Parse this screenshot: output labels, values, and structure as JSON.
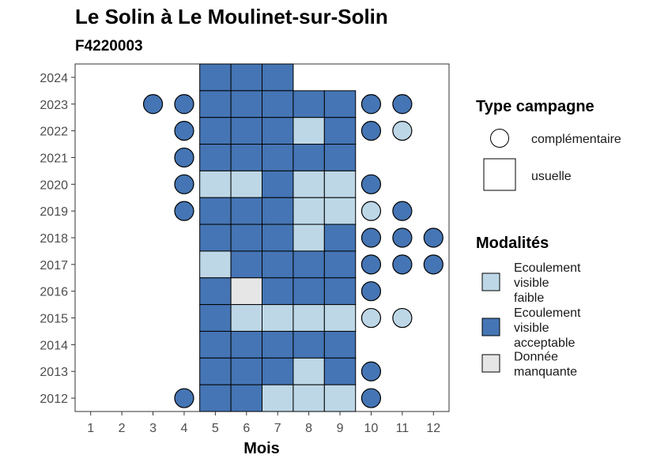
{
  "title": "Le Solin à Le Moulinet-sur-Solin",
  "subtitle": "F4220003",
  "chart_data": {
    "type": "heatmap",
    "xlabel": "Mois",
    "ylabel": "",
    "x_ticks": [
      1,
      2,
      3,
      4,
      5,
      6,
      7,
      8,
      9,
      10,
      11,
      12
    ],
    "y_ticks": [
      2012,
      2013,
      2014,
      2015,
      2016,
      2017,
      2018,
      2019,
      2020,
      2021,
      2022,
      2023,
      2024
    ],
    "xlim": [
      0.5,
      12.5
    ],
    "ylim": [
      2011.5,
      2024.5
    ],
    "colors": {
      "Ecoulement visible faible": "#bdd7e7",
      "Ecoulement visible acceptable": "#4575b4",
      "Donnée manquante": "#e6e6e6"
    },
    "legend_type": {
      "title": "Type campagne",
      "items": [
        "complémentaire",
        "usuelle"
      ]
    },
    "legend_modalites": {
      "title": "Modalités",
      "items": [
        {
          "label": "Ecoulement visible faible",
          "lines": [
            "Ecoulement",
            "visible",
            "faible"
          ]
        },
        {
          "label": "Ecoulement visible acceptable",
          "lines": [
            "Ecoulement",
            "visible",
            "acceptable"
          ]
        },
        {
          "label": "Donnée manquante",
          "lines": [
            "Donnée",
            "manquante"
          ]
        }
      ]
    },
    "points": [
      {
        "year": 2024,
        "month": 5,
        "type": "usuelle",
        "modalite": "Ecoulement visible acceptable"
      },
      {
        "year": 2024,
        "month": 6,
        "type": "usuelle",
        "modalite": "Ecoulement visible acceptable"
      },
      {
        "year": 2024,
        "month": 7,
        "type": "usuelle",
        "modalite": "Ecoulement visible acceptable"
      },
      {
        "year": 2023,
        "month": 3,
        "type": "complémentaire",
        "modalite": "Ecoulement visible acceptable"
      },
      {
        "year": 2023,
        "month": 4,
        "type": "complémentaire",
        "modalite": "Ecoulement visible acceptable"
      },
      {
        "year": 2023,
        "month": 5,
        "type": "usuelle",
        "modalite": "Ecoulement visible acceptable"
      },
      {
        "year": 2023,
        "month": 6,
        "type": "usuelle",
        "modalite": "Ecoulement visible acceptable"
      },
      {
        "year": 2023,
        "month": 7,
        "type": "usuelle",
        "modalite": "Ecoulement visible acceptable"
      },
      {
        "year": 2023,
        "month": 8,
        "type": "usuelle",
        "modalite": "Ecoulement visible acceptable"
      },
      {
        "year": 2023,
        "month": 9,
        "type": "usuelle",
        "modalite": "Ecoulement visible acceptable"
      },
      {
        "year": 2023,
        "month": 10,
        "type": "complémentaire",
        "modalite": "Ecoulement visible acceptable"
      },
      {
        "year": 2023,
        "month": 11,
        "type": "complémentaire",
        "modalite": "Ecoulement visible acceptable"
      },
      {
        "year": 2022,
        "month": 4,
        "type": "complémentaire",
        "modalite": "Ecoulement visible acceptable"
      },
      {
        "year": 2022,
        "month": 5,
        "type": "usuelle",
        "modalite": "Ecoulement visible acceptable"
      },
      {
        "year": 2022,
        "month": 6,
        "type": "usuelle",
        "modalite": "Ecoulement visible acceptable"
      },
      {
        "year": 2022,
        "month": 7,
        "type": "usuelle",
        "modalite": "Ecoulement visible acceptable"
      },
      {
        "year": 2022,
        "month": 8,
        "type": "usuelle",
        "modalite": "Ecoulement visible faible"
      },
      {
        "year": 2022,
        "month": 9,
        "type": "usuelle",
        "modalite": "Ecoulement visible acceptable"
      },
      {
        "year": 2022,
        "month": 10,
        "type": "complémentaire",
        "modalite": "Ecoulement visible acceptable"
      },
      {
        "year": 2022,
        "month": 11,
        "type": "complémentaire",
        "modalite": "Ecoulement visible faible"
      },
      {
        "year": 2021,
        "month": 4,
        "type": "complémentaire",
        "modalite": "Ecoulement visible acceptable"
      },
      {
        "year": 2021,
        "month": 5,
        "type": "usuelle",
        "modalite": "Ecoulement visible acceptable"
      },
      {
        "year": 2021,
        "month": 6,
        "type": "usuelle",
        "modalite": "Ecoulement visible acceptable"
      },
      {
        "year": 2021,
        "month": 7,
        "type": "usuelle",
        "modalite": "Ecoulement visible acceptable"
      },
      {
        "year": 2021,
        "month": 8,
        "type": "usuelle",
        "modalite": "Ecoulement visible acceptable"
      },
      {
        "year": 2021,
        "month": 9,
        "type": "usuelle",
        "modalite": "Ecoulement visible acceptable"
      },
      {
        "year": 2020,
        "month": 4,
        "type": "complémentaire",
        "modalite": "Ecoulement visible acceptable"
      },
      {
        "year": 2020,
        "month": 5,
        "type": "usuelle",
        "modalite": "Ecoulement visible faible"
      },
      {
        "year": 2020,
        "month": 6,
        "type": "usuelle",
        "modalite": "Ecoulement visible faible"
      },
      {
        "year": 2020,
        "month": 7,
        "type": "usuelle",
        "modalite": "Ecoulement visible acceptable"
      },
      {
        "year": 2020,
        "month": 8,
        "type": "usuelle",
        "modalite": "Ecoulement visible faible"
      },
      {
        "year": 2020,
        "month": 9,
        "type": "usuelle",
        "modalite": "Ecoulement visible faible"
      },
      {
        "year": 2020,
        "month": 10,
        "type": "complémentaire",
        "modalite": "Ecoulement visible acceptable"
      },
      {
        "year": 2019,
        "month": 4,
        "type": "complémentaire",
        "modalite": "Ecoulement visible acceptable"
      },
      {
        "year": 2019,
        "month": 5,
        "type": "usuelle",
        "modalite": "Ecoulement visible acceptable"
      },
      {
        "year": 2019,
        "month": 6,
        "type": "usuelle",
        "modalite": "Ecoulement visible acceptable"
      },
      {
        "year": 2019,
        "month": 7,
        "type": "usuelle",
        "modalite": "Ecoulement visible acceptable"
      },
      {
        "year": 2019,
        "month": 8,
        "type": "usuelle",
        "modalite": "Ecoulement visible faible"
      },
      {
        "year": 2019,
        "month": 9,
        "type": "usuelle",
        "modalite": "Ecoulement visible faible"
      },
      {
        "year": 2019,
        "month": 10,
        "type": "complémentaire",
        "modalite": "Ecoulement visible faible"
      },
      {
        "year": 2019,
        "month": 11,
        "type": "complémentaire",
        "modalite": "Ecoulement visible acceptable"
      },
      {
        "year": 2018,
        "month": 5,
        "type": "usuelle",
        "modalite": "Ecoulement visible acceptable"
      },
      {
        "year": 2018,
        "month": 6,
        "type": "usuelle",
        "modalite": "Ecoulement visible acceptable"
      },
      {
        "year": 2018,
        "month": 7,
        "type": "usuelle",
        "modalite": "Ecoulement visible acceptable"
      },
      {
        "year": 2018,
        "month": 8,
        "type": "usuelle",
        "modalite": "Ecoulement visible faible"
      },
      {
        "year": 2018,
        "month": 9,
        "type": "usuelle",
        "modalite": "Ecoulement visible acceptable"
      },
      {
        "year": 2018,
        "month": 10,
        "type": "complémentaire",
        "modalite": "Ecoulement visible acceptable"
      },
      {
        "year": 2018,
        "month": 11,
        "type": "complémentaire",
        "modalite": "Ecoulement visible acceptable"
      },
      {
        "year": 2018,
        "month": 12,
        "type": "complémentaire",
        "modalite": "Ecoulement visible acceptable"
      },
      {
        "year": 2017,
        "month": 5,
        "type": "usuelle",
        "modalite": "Ecoulement visible faible"
      },
      {
        "year": 2017,
        "month": 6,
        "type": "usuelle",
        "modalite": "Ecoulement visible acceptable"
      },
      {
        "year": 2017,
        "month": 7,
        "type": "usuelle",
        "modalite": "Ecoulement visible acceptable"
      },
      {
        "year": 2017,
        "month": 8,
        "type": "usuelle",
        "modalite": "Ecoulement visible acceptable"
      },
      {
        "year": 2017,
        "month": 9,
        "type": "usuelle",
        "modalite": "Ecoulement visible acceptable"
      },
      {
        "year": 2017,
        "month": 10,
        "type": "complémentaire",
        "modalite": "Ecoulement visible acceptable"
      },
      {
        "year": 2017,
        "month": 11,
        "type": "complémentaire",
        "modalite": "Ecoulement visible acceptable"
      },
      {
        "year": 2017,
        "month": 12,
        "type": "complémentaire",
        "modalite": "Ecoulement visible acceptable"
      },
      {
        "year": 2016,
        "month": 5,
        "type": "usuelle",
        "modalite": "Ecoulement visible acceptable"
      },
      {
        "year": 2016,
        "month": 6,
        "type": "usuelle",
        "modalite": "Donnée manquante"
      },
      {
        "year": 2016,
        "month": 7,
        "type": "usuelle",
        "modalite": "Ecoulement visible acceptable"
      },
      {
        "year": 2016,
        "month": 8,
        "type": "usuelle",
        "modalite": "Ecoulement visible acceptable"
      },
      {
        "year": 2016,
        "month": 9,
        "type": "usuelle",
        "modalite": "Ecoulement visible acceptable"
      },
      {
        "year": 2016,
        "month": 10,
        "type": "complémentaire",
        "modalite": "Ecoulement visible acceptable"
      },
      {
        "year": 2015,
        "month": 5,
        "type": "usuelle",
        "modalite": "Ecoulement visible acceptable"
      },
      {
        "year": 2015,
        "month": 6,
        "type": "usuelle",
        "modalite": "Ecoulement visible faible"
      },
      {
        "year": 2015,
        "month": 7,
        "type": "usuelle",
        "modalite": "Ecoulement visible faible"
      },
      {
        "year": 2015,
        "month": 8,
        "type": "usuelle",
        "modalite": "Ecoulement visible faible"
      },
      {
        "year": 2015,
        "month": 9,
        "type": "usuelle",
        "modalite": "Ecoulement visible faible"
      },
      {
        "year": 2015,
        "month": 10,
        "type": "complémentaire",
        "modalite": "Ecoulement visible faible"
      },
      {
        "year": 2015,
        "month": 11,
        "type": "complémentaire",
        "modalite": "Ecoulement visible faible"
      },
      {
        "year": 2014,
        "month": 5,
        "type": "usuelle",
        "modalite": "Ecoulement visible acceptable"
      },
      {
        "year": 2014,
        "month": 6,
        "type": "usuelle",
        "modalite": "Ecoulement visible acceptable"
      },
      {
        "year": 2014,
        "month": 7,
        "type": "usuelle",
        "modalite": "Ecoulement visible acceptable"
      },
      {
        "year": 2014,
        "month": 8,
        "type": "usuelle",
        "modalite": "Ecoulement visible acceptable"
      },
      {
        "year": 2014,
        "month": 9,
        "type": "usuelle",
        "modalite": "Ecoulement visible acceptable"
      },
      {
        "year": 2013,
        "month": 5,
        "type": "usuelle",
        "modalite": "Ecoulement visible acceptable"
      },
      {
        "year": 2013,
        "month": 6,
        "type": "usuelle",
        "modalite": "Ecoulement visible acceptable"
      },
      {
        "year": 2013,
        "month": 7,
        "type": "usuelle",
        "modalite": "Ecoulement visible acceptable"
      },
      {
        "year": 2013,
        "month": 8,
        "type": "usuelle",
        "modalite": "Ecoulement visible faible"
      },
      {
        "year": 2013,
        "month": 9,
        "type": "usuelle",
        "modalite": "Ecoulement visible acceptable"
      },
      {
        "year": 2013,
        "month": 10,
        "type": "complémentaire",
        "modalite": "Ecoulement visible acceptable"
      },
      {
        "year": 2012,
        "month": 4,
        "type": "complémentaire",
        "modalite": "Ecoulement visible acceptable"
      },
      {
        "year": 2012,
        "month": 5,
        "type": "usuelle",
        "modalite": "Ecoulement visible acceptable"
      },
      {
        "year": 2012,
        "month": 6,
        "type": "usuelle",
        "modalite": "Ecoulement visible acceptable"
      },
      {
        "year": 2012,
        "month": 7,
        "type": "usuelle",
        "modalite": "Ecoulement visible faible"
      },
      {
        "year": 2012,
        "month": 8,
        "type": "usuelle",
        "modalite": "Ecoulement visible faible"
      },
      {
        "year": 2012,
        "month": 9,
        "type": "usuelle",
        "modalite": "Ecoulement visible faible"
      },
      {
        "year": 2012,
        "month": 10,
        "type": "complémentaire",
        "modalite": "Ecoulement visible acceptable"
      }
    ]
  }
}
